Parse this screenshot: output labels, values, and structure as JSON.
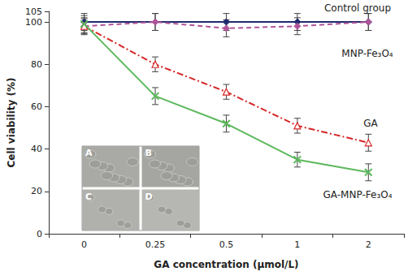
{
  "chart_data": {
    "type": "line",
    "x_label": "GA concentration (µmol/L)",
    "y_label": "Cell viability (%)",
    "categories": [
      "0",
      "0.25",
      "0.5",
      "1",
      "2"
    ],
    "ylim": [
      0,
      105
    ],
    "yticks": [
      0,
      20,
      40,
      60,
      80,
      100
    ],
    "grid": false,
    "series": [
      {
        "name": "Control group",
        "color": "#1f2a6e",
        "marker": "diamond",
        "line_style": "solid",
        "values": [
          100,
          100,
          100,
          100,
          100
        ],
        "errors": [
          4,
          4,
          4,
          4,
          4
        ]
      },
      {
        "name": "MNP-Fe₃O₄",
        "color": "#b0559a",
        "marker": "diamond",
        "line_style": "dashed",
        "values": [
          98,
          100,
          97,
          98,
          100
        ],
        "errors": [
          4,
          4,
          4,
          4,
          4
        ]
      },
      {
        "name": "GA",
        "color": "#d62728",
        "marker": "triangle",
        "line_style": "dashdot",
        "values": [
          98,
          80,
          67,
          51,
          43
        ],
        "errors": [
          3.5,
          3.5,
          3.5,
          3.5,
          4
        ]
      },
      {
        "name": "GA-MNP-Fe₃O₄",
        "color": "#5cb85c",
        "marker": "x",
        "line_style": "solid",
        "values": [
          99,
          65,
          52,
          35,
          29
        ],
        "errors": [
          4,
          4,
          4,
          3.5,
          4
        ]
      }
    ],
    "annotations": [
      "A",
      "B",
      "C",
      "D"
    ]
  }
}
